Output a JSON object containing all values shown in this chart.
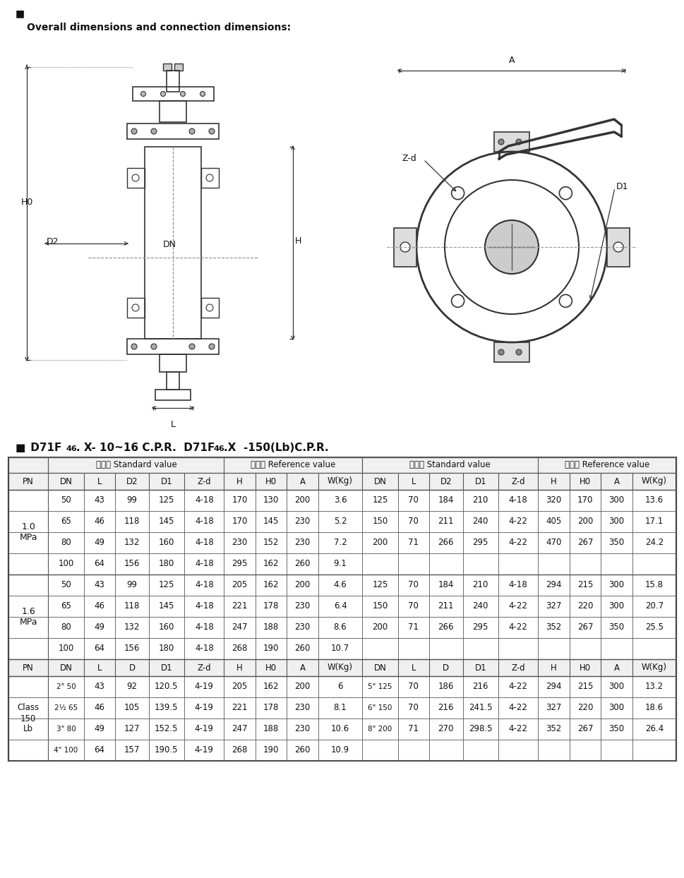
{
  "bg_color": "#ffffff",
  "text_color": "#111111",
  "subtitle": "Overall dimensions and connection dimensions:",
  "model_part1": "■ D71F",
  "model_sub1": "46",
  "model_part2": ". X- 10~16 C.P.R.  D71F",
  "model_sub2": "46",
  "model_part3": ".X  -150(Lb)C.P.R.",
  "header1_std": "标准値 Standard value",
  "header1_ref": "参考値 Reference value",
  "header2_l": [
    "PN",
    "DN",
    "L",
    "D2",
    "D1",
    "Z-d",
    "H",
    "H0",
    "A",
    "W(Kg)"
  ],
  "header2_r": [
    "DN",
    "L",
    "D2",
    "D1",
    "Z-d",
    "H",
    "H0",
    "A",
    "W(Kg)"
  ],
  "header2b_l": [
    "PN",
    "DN",
    "L",
    "D",
    "D1",
    "Z-d",
    "H",
    "H0",
    "A",
    "W(Kg)"
  ],
  "header2b_r": [
    "DN",
    "L",
    "D",
    "D1",
    "Z-d",
    "H",
    "H0",
    "A",
    "W(Kg)"
  ],
  "rows_10MPa_left": [
    [
      "50",
      "43",
      "99",
      "125",
      "4-18",
      "170",
      "130",
      "200",
      "3.6"
    ],
    [
      "65",
      "46",
      "118",
      "145",
      "4-18",
      "170",
      "145",
      "230",
      "5.2"
    ],
    [
      "80",
      "49",
      "132",
      "160",
      "4-18",
      "230",
      "152",
      "230",
      "7.2"
    ],
    [
      "100",
      "64",
      "156",
      "180",
      "4-18",
      "295",
      "162",
      "260",
      "9.1"
    ]
  ],
  "rows_10MPa_right": [
    [
      "125",
      "70",
      "184",
      "210",
      "4-18",
      "320",
      "170",
      "300",
      "13.6"
    ],
    [
      "150",
      "70",
      "211",
      "240",
      "4-22",
      "405",
      "200",
      "300",
      "17.1"
    ],
    [
      "200",
      "71",
      "266",
      "295",
      "4-22",
      "470",
      "267",
      "350",
      "24.2"
    ],
    [
      "",
      "",
      "",
      "",
      "",
      "",
      "",
      "",
      ""
    ]
  ],
  "rows_16MPa_left": [
    [
      "50",
      "43",
      "99",
      "125",
      "4-18",
      "205",
      "162",
      "200",
      "4.6"
    ],
    [
      "65",
      "46",
      "118",
      "145",
      "4-18",
      "221",
      "178",
      "230",
      "6.4"
    ],
    [
      "80",
      "49",
      "132",
      "160",
      "4-18",
      "247",
      "188",
      "230",
      "8.6"
    ],
    [
      "100",
      "64",
      "156",
      "180",
      "4-18",
      "268",
      "190",
      "260",
      "10.7"
    ]
  ],
  "rows_16MPa_right": [
    [
      "125",
      "70",
      "184",
      "210",
      "4-18",
      "294",
      "215",
      "300",
      "15.8"
    ],
    [
      "150",
      "70",
      "211",
      "240",
      "4-22",
      "327",
      "220",
      "300",
      "20.7"
    ],
    [
      "200",
      "71",
      "266",
      "295",
      "4-22",
      "352",
      "267",
      "350",
      "25.5"
    ],
    [
      "",
      "",
      "",
      "",
      "",
      "",
      "",
      "",
      ""
    ]
  ],
  "rows_class150_left": [
    [
      "2\" 50",
      "43",
      "92",
      "120.5",
      "4-19",
      "205",
      "162",
      "200",
      "6"
    ],
    [
      "2½ 65",
      "46",
      "105",
      "139.5",
      "4-19",
      "221",
      "178",
      "230",
      "8.1"
    ],
    [
      "3\" 80",
      "49",
      "127",
      "152.5",
      "4-19",
      "247",
      "188",
      "230",
      "10.6"
    ],
    [
      "4\" 100",
      "64",
      "157",
      "190.5",
      "4-19",
      "268",
      "190",
      "260",
      "10.9"
    ]
  ],
  "rows_class150_right": [
    [
      "5\" 125",
      "70",
      "186",
      "216",
      "4-22",
      "294",
      "215",
      "300",
      "13.2"
    ],
    [
      "6\" 150",
      "70",
      "216",
      "241.5",
      "4-22",
      "327",
      "220",
      "300",
      "18.6"
    ],
    [
      "8\" 200",
      "71",
      "270",
      "298.5",
      "4-22",
      "352",
      "267",
      "350",
      "26.4"
    ],
    [
      "",
      "",
      "",
      "",
      "",
      "",
      "",
      "",
      ""
    ]
  ],
  "col_ws_l": [
    38,
    34,
    30,
    32,
    34,
    38,
    30,
    30,
    30,
    42
  ],
  "col_ws_r": [
    34,
    30,
    32,
    34,
    38,
    30,
    30,
    30,
    42
  ]
}
